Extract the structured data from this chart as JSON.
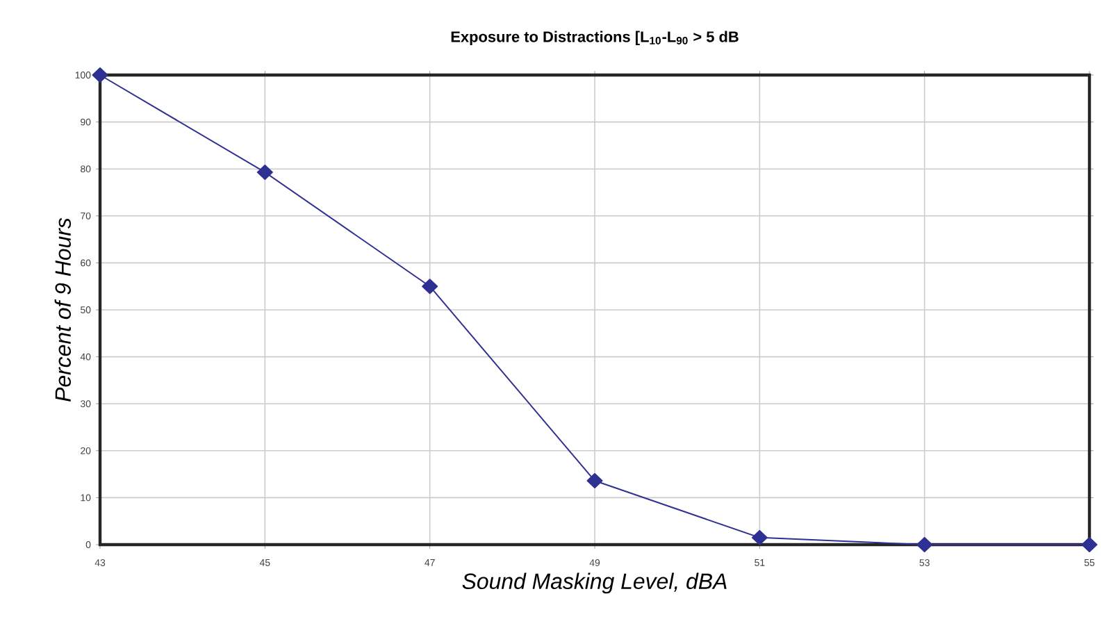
{
  "chart_data": {
    "type": "line",
    "title": "Exposure to Distractions [L$_{10}$-L$_{90}$ > 5 dB",
    "xlabel": "Sound Masking Level, dBA",
    "ylabel": "Percent of 9 Hours",
    "categories": [
      "43",
      "45",
      "47",
      "49",
      "51",
      "53",
      "55"
    ],
    "series": [
      {
        "color": "#2e3192",
        "values": [
          100,
          79.3,
          55,
          13.6,
          1.5,
          0,
          0
        ]
      }
    ],
    "ylim": [
      0,
      100
    ],
    "yticks": [
      0,
      10,
      20,
      30,
      40,
      50,
      60,
      70,
      80,
      90,
      100
    ],
    "grid": true,
    "marker": "diamond",
    "line_style": "solid"
  }
}
